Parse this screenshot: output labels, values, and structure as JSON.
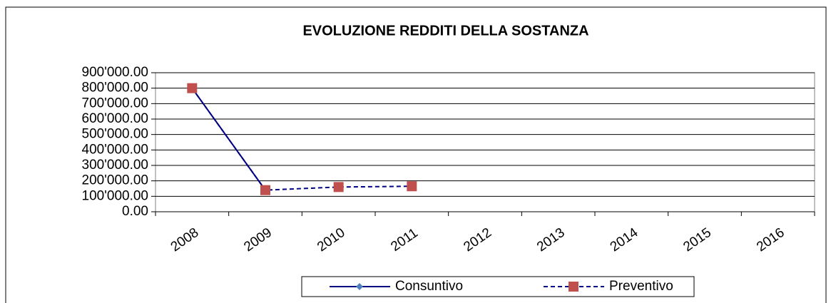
{
  "chart_data": {
    "type": "line",
    "title": "EVOLUZIONE REDDITI DELLA SOSTANZA",
    "categories": [
      "2008",
      "2009",
      "2010",
      "2011",
      "2012",
      "2013",
      "2014",
      "2015",
      "2016"
    ],
    "series": [
      {
        "name": "Consuntivo",
        "color": "#000080",
        "marker_color": "#4f81bd",
        "marker": "diamond",
        "dashed": false,
        "values": [
          800000,
          140000,
          null,
          null,
          null,
          null,
          null,
          null,
          null
        ]
      },
      {
        "name": "Preventivo",
        "color": "#000080",
        "marker_color": "#c0504d",
        "marker": "square",
        "dashed": true,
        "values": [
          800000,
          140000,
          160000,
          165000,
          null,
          null,
          null,
          null,
          null
        ]
      }
    ],
    "ylim": [
      0,
      900000
    ],
    "yticks": [
      {
        "value": 0,
        "label": "0.00"
      },
      {
        "value": 100000,
        "label": "100'000.00"
      },
      {
        "value": 200000,
        "label": "200'000.00"
      },
      {
        "value": 300000,
        "label": "300'000.00"
      },
      {
        "value": 400000,
        "label": "400'000.00"
      },
      {
        "value": 500000,
        "label": "500'000.00"
      },
      {
        "value": 600000,
        "label": "600'000.00"
      },
      {
        "value": 700000,
        "label": "700'000.00"
      },
      {
        "value": 800000,
        "label": "800'000.00"
      },
      {
        "value": 900000,
        "label": "900'000.00"
      }
    ],
    "grid": true,
    "legend": "bottom"
  }
}
